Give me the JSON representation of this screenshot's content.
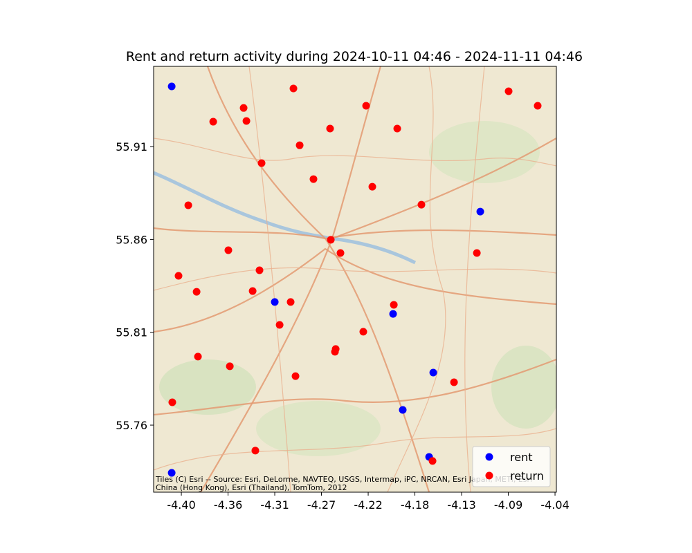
{
  "chart_data": {
    "type": "scatter",
    "title": "Rent and return activity during 2024-10-11 04:46 - 2024-11-11 04:46",
    "attribution": [
      "Tiles (C) Esri -- Source: Esri, DeLorme, NAVTEQ, USGS, Intermap, iPC, NRCAN, Esri Japan, METI, Esri",
      "China (Hong Kong), Esri (Thailand), TomTom, 2012"
    ],
    "xlim": [
      -4.4267,
      -4.0387
    ],
    "ylim": [
      55.7239,
      55.9532
    ],
    "xticks": [
      {
        "value": -4.4,
        "label": "-4.40"
      },
      {
        "value": -4.355,
        "label": "-4.36"
      },
      {
        "value": -4.31,
        "label": "-4.31"
      },
      {
        "value": -4.265,
        "label": "-4.27"
      },
      {
        "value": -4.22,
        "label": "-4.22"
      },
      {
        "value": -4.175,
        "label": "-4.18"
      },
      {
        "value": -4.13,
        "label": "-4.13"
      },
      {
        "value": -4.085,
        "label": "-4.09"
      },
      {
        "value": -4.04,
        "label": "-4.04"
      }
    ],
    "yticks": [
      55.76,
      55.81,
      55.86,
      55.91
    ],
    "legend": "lower right",
    "series": [
      {
        "name": "rent",
        "color": "#0000ff",
        "x": [
          -4.4093,
          -4.112,
          -4.31,
          -4.196,
          -4.1573,
          -4.1867,
          -4.1613,
          -4.4093
        ],
        "y": [
          55.9424,
          55.875,
          55.8263,
          55.8199,
          55.7883,
          55.7682,
          55.7429,
          55.7343
        ]
      },
      {
        "name": "return",
        "color": "#ff0000",
        "x": [
          -4.292,
          -4.34,
          -4.222,
          -4.0847,
          -4.0567,
          -4.3693,
          -4.3373,
          -4.2567,
          -4.192,
          -4.286,
          -4.3227,
          -4.2727,
          -4.216,
          -4.3933,
          -4.1687,
          -4.256,
          -4.3547,
          -4.2467,
          -4.1153,
          -4.3247,
          -4.4027,
          -4.3853,
          -4.3313,
          -4.2947,
          -4.1953,
          -4.3053,
          -4.2247,
          -4.2513,
          -4.252,
          -4.384,
          -4.3533,
          -4.29,
          -4.1373,
          -4.4087,
          -4.3287,
          -4.158
        ],
        "y": [
          55.9413,
          55.9308,
          55.932,
          55.9398,
          55.932,
          55.9234,
          55.9238,
          55.9197,
          55.9197,
          55.9107,
          55.9011,
          55.8925,
          55.8884,
          55.8784,
          55.8787,
          55.8598,
          55.8542,
          55.8527,
          55.8527,
          55.8434,
          55.8404,
          55.8318,
          55.8322,
          55.8263,
          55.8248,
          55.814,
          55.8103,
          55.801,
          55.7995,
          55.7969,
          55.7917,
          55.7864,
          55.7831,
          55.7723,
          55.7463,
          55.7407
        ]
      }
    ]
  }
}
